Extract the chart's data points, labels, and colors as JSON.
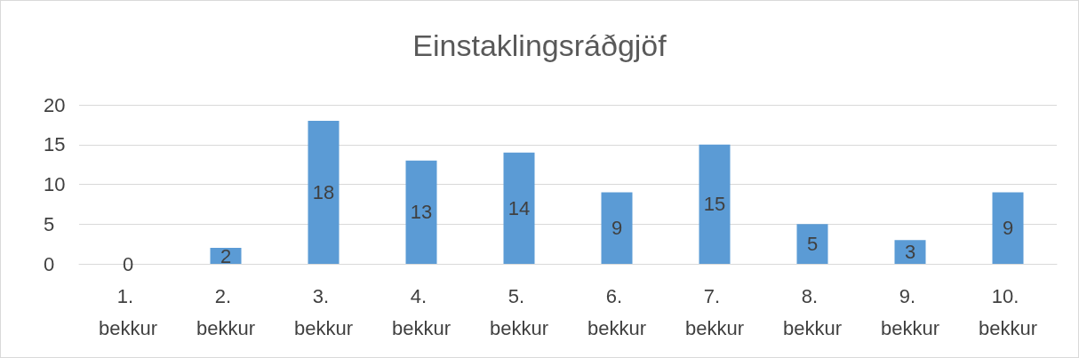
{
  "chart_data": {
    "type": "bar",
    "title": "Einstaklingsráðgjöf",
    "categories": [
      "1. bekkur",
      "2. bekkur",
      "3. bekkur",
      "4. bekkur",
      "5. bekkur",
      "6. bekkur",
      "7. bekkur",
      "8. bekkur",
      "9. bekkur",
      "10. bekkur"
    ],
    "values": [
      0,
      2,
      18,
      13,
      14,
      9,
      15,
      5,
      3,
      9
    ],
    "color": "#5b9bd5",
    "ylim": [
      0,
      20
    ],
    "yticks": [
      0,
      5,
      10,
      15,
      20
    ],
    "grid": "y",
    "data_labels": true
  }
}
